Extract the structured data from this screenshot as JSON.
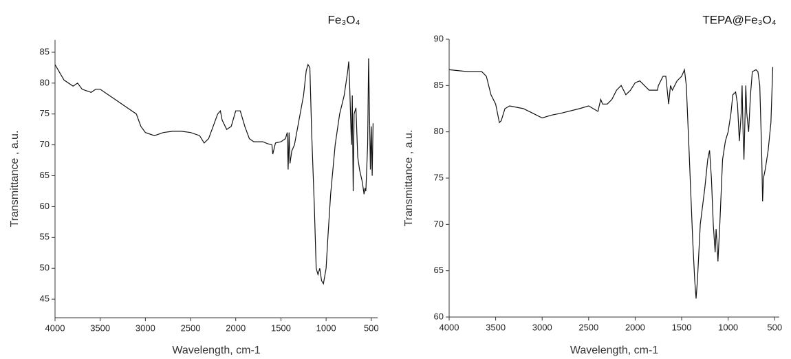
{
  "chart_data": [
    {
      "type": "line",
      "title": "Fe₃O₄",
      "x_label": "Wavelength, cm-1",
      "y_label": "Transmittance , a.u.",
      "color": "#111111",
      "xlim": [
        4000,
        430
      ],
      "ylim": [
        42,
        87
      ],
      "xticks": [
        4000,
        3500,
        3000,
        2500,
        2000,
        1500,
        1000,
        500
      ],
      "yticks": [
        45,
        50,
        55,
        60,
        65,
        70,
        75,
        80,
        85
      ],
      "x": [
        4000,
        3900,
        3800,
        3750,
        3700,
        3600,
        3550,
        3500,
        3400,
        3300,
        3200,
        3100,
        3050,
        3000,
        2900,
        2800,
        2700,
        2600,
        2500,
        2400,
        2350,
        2300,
        2250,
        2200,
        2170,
        2150,
        2100,
        2050,
        2000,
        1950,
        1900,
        1850,
        1800,
        1700,
        1650,
        1600,
        1590,
        1560,
        1500,
        1450,
        1430,
        1420,
        1410,
        1400,
        1380,
        1350,
        1300,
        1250,
        1220,
        1200,
        1180,
        1160,
        1130,
        1110,
        1090,
        1070,
        1050,
        1030,
        1000,
        980,
        950,
        900,
        850,
        800,
        760,
        750,
        740,
        720,
        710,
        700,
        690,
        670,
        650,
        630,
        600,
        580,
        570,
        560,
        540,
        530,
        520,
        510,
        500,
        490,
        480
      ],
      "values": [
        83,
        80.5,
        79.5,
        80,
        79,
        78.5,
        79,
        79,
        78,
        77,
        76,
        75,
        73,
        72,
        71.5,
        72,
        72.2,
        72.2,
        72,
        71.5,
        70.3,
        71,
        73,
        75,
        75.5,
        74,
        72.5,
        73,
        75.5,
        75.5,
        73,
        71,
        70.5,
        70.5,
        70.2,
        70,
        68.5,
        70.3,
        70.5,
        71,
        72,
        66,
        72,
        67,
        69,
        70,
        74,
        78,
        82,
        83,
        82.5,
        72,
        60,
        50,
        49,
        50,
        48,
        47.5,
        50,
        55,
        62,
        70,
        75,
        78,
        82,
        83.5,
        80,
        70,
        78,
        62.5,
        75,
        76,
        68,
        66,
        64,
        62,
        63,
        62.5,
        70,
        84,
        75,
        66,
        73,
        65,
        73.5
      ]
    },
    {
      "type": "line",
      "title": "TEPA@Fe₃O₄",
      "x_label": "Wavelength, cm-1",
      "y_label": "Transmittance , a.u.",
      "color": "#111111",
      "xlim": [
        4000,
        450
      ],
      "ylim": [
        60,
        90
      ],
      "xticks": [
        4000,
        3500,
        3000,
        2500,
        2000,
        1500,
        1000,
        500
      ],
      "yticks": [
        60,
        65,
        70,
        75,
        80,
        85,
        90
      ],
      "x": [
        4000,
        3800,
        3650,
        3600,
        3550,
        3500,
        3460,
        3440,
        3400,
        3350,
        3200,
        3100,
        3000,
        2900,
        2800,
        2600,
        2500,
        2450,
        2400,
        2370,
        2350,
        2300,
        2250,
        2200,
        2150,
        2100,
        2050,
        2000,
        1950,
        1900,
        1850,
        1800,
        1760,
        1750,
        1700,
        1670,
        1640,
        1620,
        1600,
        1550,
        1500,
        1470,
        1450,
        1420,
        1400,
        1380,
        1360,
        1345,
        1330,
        1300,
        1250,
        1220,
        1200,
        1180,
        1160,
        1140,
        1130,
        1120,
        1110,
        1090,
        1060,
        1030,
        1000,
        970,
        950,
        920,
        900,
        880,
        860,
        850,
        840,
        830,
        810,
        800,
        780,
        760,
        740,
        700,
        680,
        660,
        640,
        630,
        620,
        600,
        570,
        540,
        520
      ],
      "values": [
        86.7,
        86.5,
        86.5,
        86,
        84,
        83,
        81,
        81.2,
        82.5,
        82.8,
        82.5,
        82,
        81.5,
        81.8,
        82,
        82.5,
        82.8,
        82.5,
        82.2,
        83.5,
        83,
        83,
        83.5,
        84.5,
        85,
        84,
        84.5,
        85.3,
        85.5,
        85,
        84.5,
        84.5,
        84.5,
        85,
        86,
        86,
        83,
        85,
        84.5,
        85.5,
        86,
        86.7,
        85,
        78,
        73,
        68,
        64,
        62,
        64,
        70,
        74,
        77,
        78,
        75,
        70,
        67,
        69.5,
        68,
        66,
        70,
        77,
        79,
        80,
        82,
        84,
        84.3,
        83,
        79,
        82,
        85,
        80,
        77,
        85,
        82,
        80,
        84,
        86.5,
        86.7,
        86.5,
        85,
        78,
        72.5,
        75,
        76,
        78,
        81,
        87
      ]
    }
  ]
}
